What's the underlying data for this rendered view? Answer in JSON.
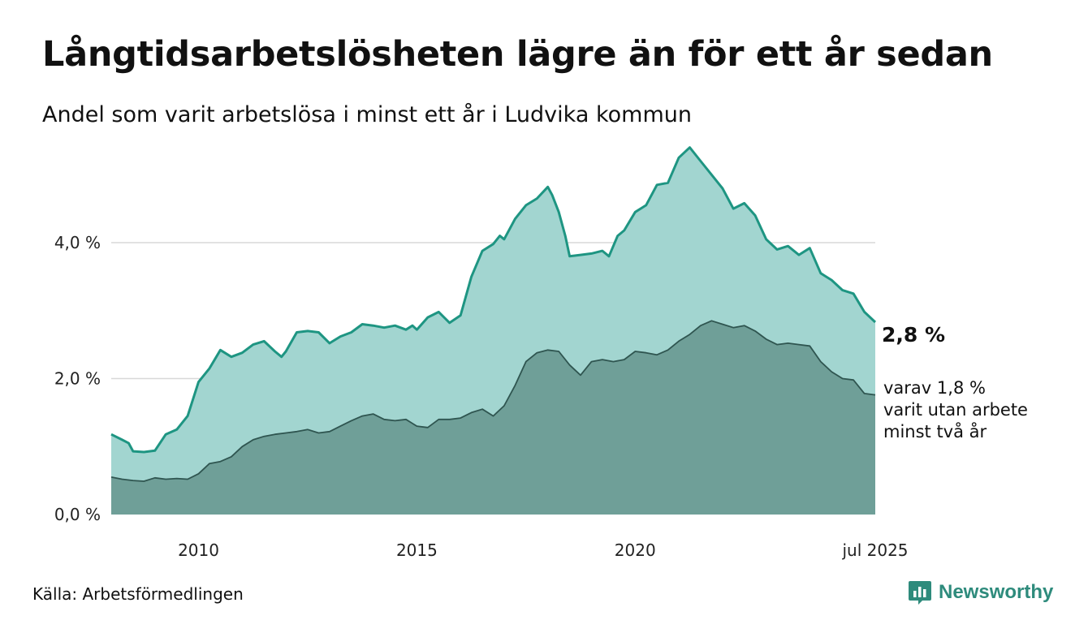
{
  "header": {
    "title": "Långtidsarbetslösheten lägre än för ett år sedan",
    "subtitle": "Andel som varit arbetslösa i minst ett år i Ludvika kommun"
  },
  "footer": {
    "source": "Källa: Arbetsförmedlingen",
    "brand": "Newsworthy",
    "brand_icon": "newsworthy-logo-icon"
  },
  "colors": {
    "total_area": "#a2d5d0",
    "total_line": "#1e9582",
    "long_area": "#6f9f98",
    "long_line": "#2f5550",
    "grid": "#d8d8d8",
    "brand": "#2e8b7c"
  },
  "chart_data": {
    "type": "area",
    "x_unit": "year",
    "xlim": [
      2008.0,
      2025.5
    ],
    "ylim": [
      0,
      5.6
    ],
    "yticks": [
      {
        "value": 0,
        "label": "0,0 %"
      },
      {
        "value": 2,
        "label": "2,0 %"
      },
      {
        "value": 4,
        "label": "4,0 %"
      }
    ],
    "xticks": [
      {
        "value": 2010,
        "label": "2010"
      },
      {
        "value": 2015,
        "label": "2015"
      },
      {
        "value": 2020,
        "label": "2020"
      },
      {
        "value": 2025.5,
        "label": "jul 2025"
      }
    ],
    "grid": "horizontal",
    "legend": "none",
    "annotations": {
      "total_end": "2,8 %",
      "long_end_lines": [
        "varav 1,8 %",
        "varit utan arbete",
        "minst två år"
      ]
    },
    "series": [
      {
        "key": "total",
        "points": [
          [
            2008.0,
            1.18
          ],
          [
            2008.25,
            1.1
          ],
          [
            2008.4,
            1.05
          ],
          [
            2008.5,
            0.93
          ],
          [
            2008.75,
            0.92
          ],
          [
            2009.0,
            0.94
          ],
          [
            2009.25,
            1.18
          ],
          [
            2009.5,
            1.25
          ],
          [
            2009.75,
            1.45
          ],
          [
            2010.0,
            1.95
          ],
          [
            2010.25,
            2.15
          ],
          [
            2010.5,
            2.42
          ],
          [
            2010.75,
            2.32
          ],
          [
            2011.0,
            2.38
          ],
          [
            2011.25,
            2.5
          ],
          [
            2011.5,
            2.55
          ],
          [
            2011.75,
            2.4
          ],
          [
            2011.9,
            2.32
          ],
          [
            2012.0,
            2.4
          ],
          [
            2012.25,
            2.68
          ],
          [
            2012.5,
            2.7
          ],
          [
            2012.75,
            2.68
          ],
          [
            2013.0,
            2.52
          ],
          [
            2013.25,
            2.62
          ],
          [
            2013.5,
            2.68
          ],
          [
            2013.75,
            2.8
          ],
          [
            2014.0,
            2.78
          ],
          [
            2014.25,
            2.75
          ],
          [
            2014.5,
            2.78
          ],
          [
            2014.75,
            2.72
          ],
          [
            2014.9,
            2.78
          ],
          [
            2015.0,
            2.72
          ],
          [
            2015.25,
            2.9
          ],
          [
            2015.5,
            2.98
          ],
          [
            2015.75,
            2.82
          ],
          [
            2016.0,
            2.93
          ],
          [
            2016.25,
            3.5
          ],
          [
            2016.5,
            3.88
          ],
          [
            2016.75,
            3.98
          ],
          [
            2016.9,
            4.1
          ],
          [
            2017.0,
            4.05
          ],
          [
            2017.25,
            4.35
          ],
          [
            2017.5,
            4.55
          ],
          [
            2017.75,
            4.65
          ],
          [
            2018.0,
            4.82
          ],
          [
            2018.1,
            4.7
          ],
          [
            2018.25,
            4.45
          ],
          [
            2018.4,
            4.1
          ],
          [
            2018.5,
            3.8
          ],
          [
            2018.75,
            3.82
          ],
          [
            2019.0,
            3.84
          ],
          [
            2019.25,
            3.88
          ],
          [
            2019.4,
            3.8
          ],
          [
            2019.6,
            4.1
          ],
          [
            2019.75,
            4.18
          ],
          [
            2020.0,
            4.45
          ],
          [
            2020.25,
            4.55
          ],
          [
            2020.5,
            4.85
          ],
          [
            2020.75,
            4.88
          ],
          [
            2021.0,
            5.25
          ],
          [
            2021.25,
            5.4
          ],
          [
            2021.5,
            5.2
          ],
          [
            2021.75,
            5.0
          ],
          [
            2022.0,
            4.8
          ],
          [
            2022.25,
            4.5
          ],
          [
            2022.5,
            4.58
          ],
          [
            2022.75,
            4.4
          ],
          [
            2023.0,
            4.05
          ],
          [
            2023.25,
            3.9
          ],
          [
            2023.5,
            3.95
          ],
          [
            2023.75,
            3.82
          ],
          [
            2024.0,
            3.92
          ],
          [
            2024.25,
            3.55
          ],
          [
            2024.5,
            3.45
          ],
          [
            2024.75,
            3.3
          ],
          [
            2025.0,
            3.25
          ],
          [
            2025.25,
            2.98
          ],
          [
            2025.5,
            2.83
          ]
        ]
      },
      {
        "key": "long",
        "points": [
          [
            2008.0,
            0.55
          ],
          [
            2008.25,
            0.52
          ],
          [
            2008.5,
            0.5
          ],
          [
            2008.75,
            0.49
          ],
          [
            2009.0,
            0.54
          ],
          [
            2009.25,
            0.52
          ],
          [
            2009.5,
            0.53
          ],
          [
            2009.75,
            0.52
          ],
          [
            2010.0,
            0.6
          ],
          [
            2010.25,
            0.75
          ],
          [
            2010.5,
            0.78
          ],
          [
            2010.75,
            0.85
          ],
          [
            2011.0,
            1.0
          ],
          [
            2011.25,
            1.1
          ],
          [
            2011.5,
            1.15
          ],
          [
            2011.75,
            1.18
          ],
          [
            2012.0,
            1.2
          ],
          [
            2012.25,
            1.22
          ],
          [
            2012.5,
            1.25
          ],
          [
            2012.75,
            1.2
          ],
          [
            2013.0,
            1.22
          ],
          [
            2013.25,
            1.3
          ],
          [
            2013.5,
            1.38
          ],
          [
            2013.75,
            1.45
          ],
          [
            2014.0,
            1.48
          ],
          [
            2014.25,
            1.4
          ],
          [
            2014.5,
            1.38
          ],
          [
            2014.75,
            1.4
          ],
          [
            2015.0,
            1.3
          ],
          [
            2015.25,
            1.28
          ],
          [
            2015.5,
            1.4
          ],
          [
            2015.75,
            1.4
          ],
          [
            2016.0,
            1.42
          ],
          [
            2016.25,
            1.5
          ],
          [
            2016.5,
            1.55
          ],
          [
            2016.75,
            1.45
          ],
          [
            2017.0,
            1.6
          ],
          [
            2017.25,
            1.9
          ],
          [
            2017.5,
            2.25
          ],
          [
            2017.75,
            2.38
          ],
          [
            2018.0,
            2.42
          ],
          [
            2018.25,
            2.4
          ],
          [
            2018.5,
            2.2
          ],
          [
            2018.75,
            2.05
          ],
          [
            2019.0,
            2.25
          ],
          [
            2019.25,
            2.28
          ],
          [
            2019.5,
            2.25
          ],
          [
            2019.75,
            2.28
          ],
          [
            2020.0,
            2.4
          ],
          [
            2020.25,
            2.38
          ],
          [
            2020.5,
            2.35
          ],
          [
            2020.75,
            2.42
          ],
          [
            2021.0,
            2.55
          ],
          [
            2021.25,
            2.65
          ],
          [
            2021.5,
            2.78
          ],
          [
            2021.75,
            2.85
          ],
          [
            2022.0,
            2.8
          ],
          [
            2022.25,
            2.75
          ],
          [
            2022.5,
            2.78
          ],
          [
            2022.75,
            2.7
          ],
          [
            2023.0,
            2.58
          ],
          [
            2023.25,
            2.5
          ],
          [
            2023.5,
            2.52
          ],
          [
            2023.75,
            2.5
          ],
          [
            2024.0,
            2.48
          ],
          [
            2024.25,
            2.25
          ],
          [
            2024.5,
            2.1
          ],
          [
            2024.75,
            2.0
          ],
          [
            2025.0,
            1.98
          ],
          [
            2025.25,
            1.78
          ],
          [
            2025.5,
            1.76
          ]
        ]
      }
    ]
  }
}
